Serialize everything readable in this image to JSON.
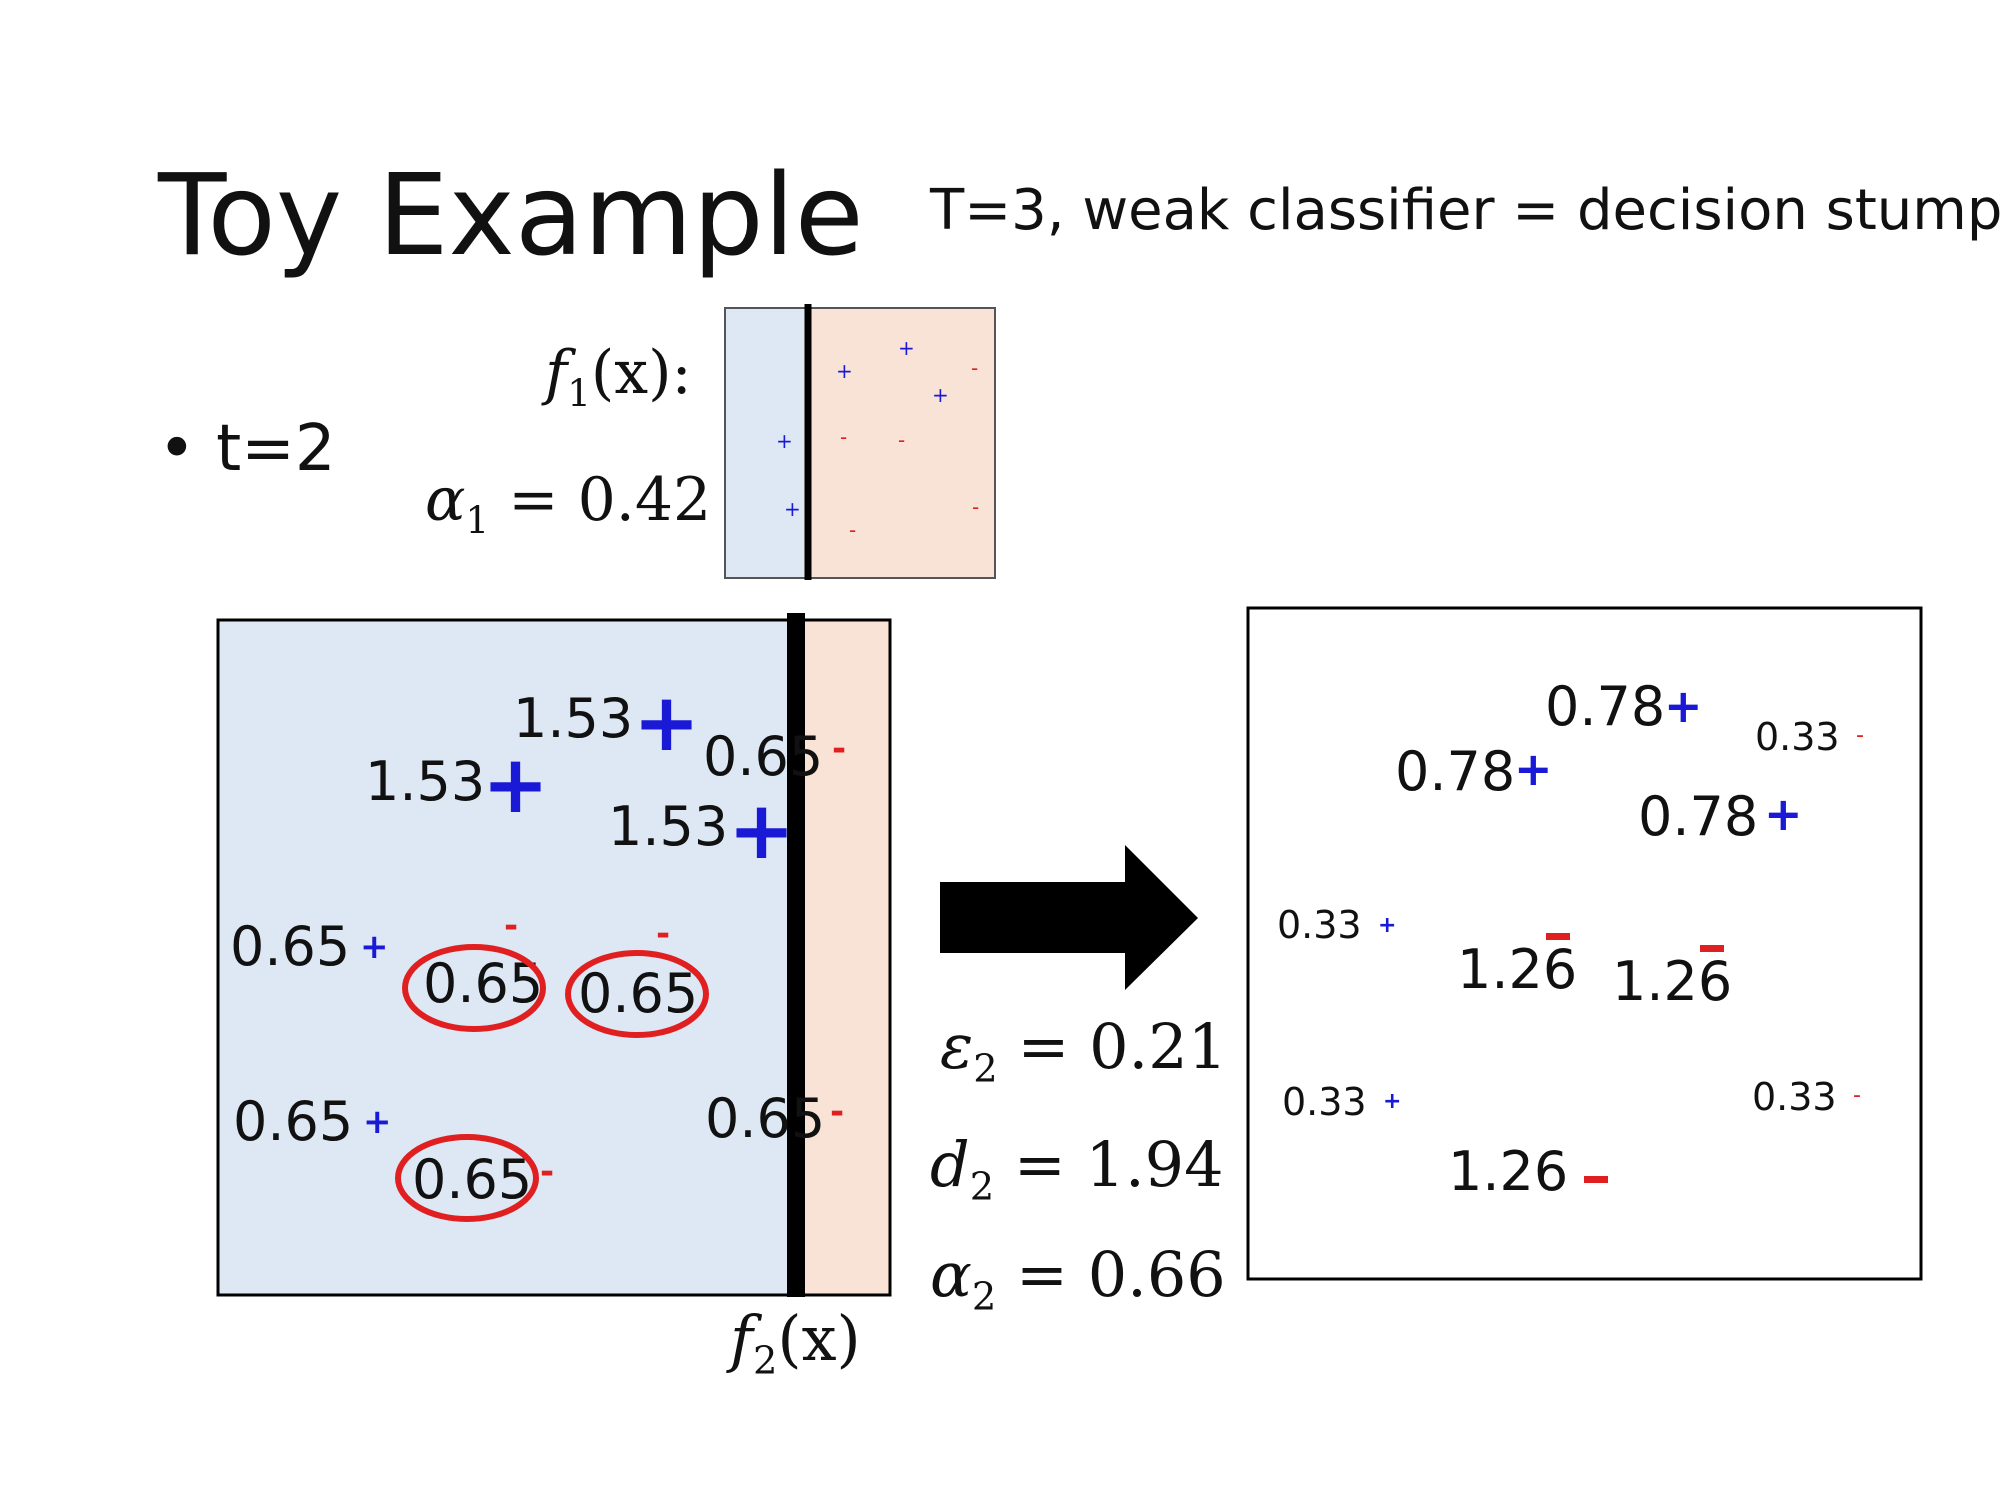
{
  "title": "Toy Example",
  "subtitle": "T=3, weak classifier = decision stump",
  "bullet": "t=2",
  "f1_label": {
    "name": "f",
    "sub": "1",
    "arg": "(x):"
  },
  "alpha1": {
    "name": "α",
    "sub": "1",
    "rhs": "= 0.42"
  },
  "f2_label": {
    "name": "f",
    "sub": "2",
    "arg": "(x)"
  },
  "eps2": {
    "name": "ε",
    "sub": "2",
    "rhs": "= 0.21"
  },
  "d2": {
    "name": "d",
    "sub": "2",
    "rhs": "= 1.94"
  },
  "alpha2": {
    "name": "α",
    "sub": "2",
    "rhs": "= 0.66"
  },
  "colors": {
    "positive": "#1a1ad6",
    "negative": "#e02020",
    "left_region": "#dde8f4",
    "right_region": "#f8e3d6",
    "circle": "#e02020",
    "arrow": "#000000"
  },
  "mini_signs": [
    "+",
    "+",
    "+",
    "+",
    "+",
    "-",
    "-",
    "-",
    "-",
    "-"
  ],
  "left_weights": {
    "w1": "1.53",
    "w2": "1.53",
    "w3": "1.53",
    "w4": "0.65",
    "w5": "0.65",
    "w6": "0.65",
    "w7": "0.65",
    "w8": "0.65",
    "w9": "0.65",
    "w10": "0.65"
  },
  "right_weights": {
    "w1": "0.78",
    "w2": "0.78",
    "w3": "0.78",
    "w4": "0.33",
    "w5": "0.33",
    "w6": "0.33",
    "w7": "0.33",
    "w8": "1.26",
    "w9": "1.26",
    "w10": "1.26"
  },
  "signs": {
    "plus": "+",
    "minus": "-"
  }
}
